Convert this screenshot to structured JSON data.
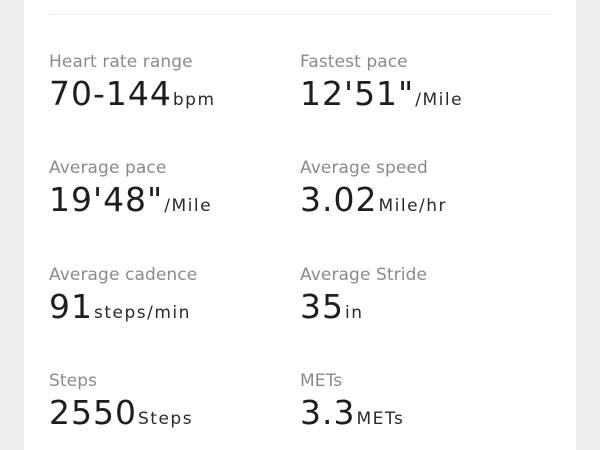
{
  "stats": [
    {
      "label": "Heart rate range",
      "value": "70-144",
      "unit": "bpm"
    },
    {
      "label": "Fastest pace",
      "value": "12'51\"",
      "unit": "/Mile"
    },
    {
      "label": "Average pace",
      "value": "19'48\"",
      "unit": "/Mile"
    },
    {
      "label": "Average speed",
      "value": "3.02",
      "unit": "Mile/hr"
    },
    {
      "label": "Average cadence",
      "value": "91",
      "unit": "steps/min"
    },
    {
      "label": "Average Stride",
      "value": "35",
      "unit": "in"
    },
    {
      "label": "Steps",
      "value": "2550",
      "unit": "Steps"
    },
    {
      "label": "METs",
      "value": "3.3",
      "unit": "METs"
    }
  ]
}
